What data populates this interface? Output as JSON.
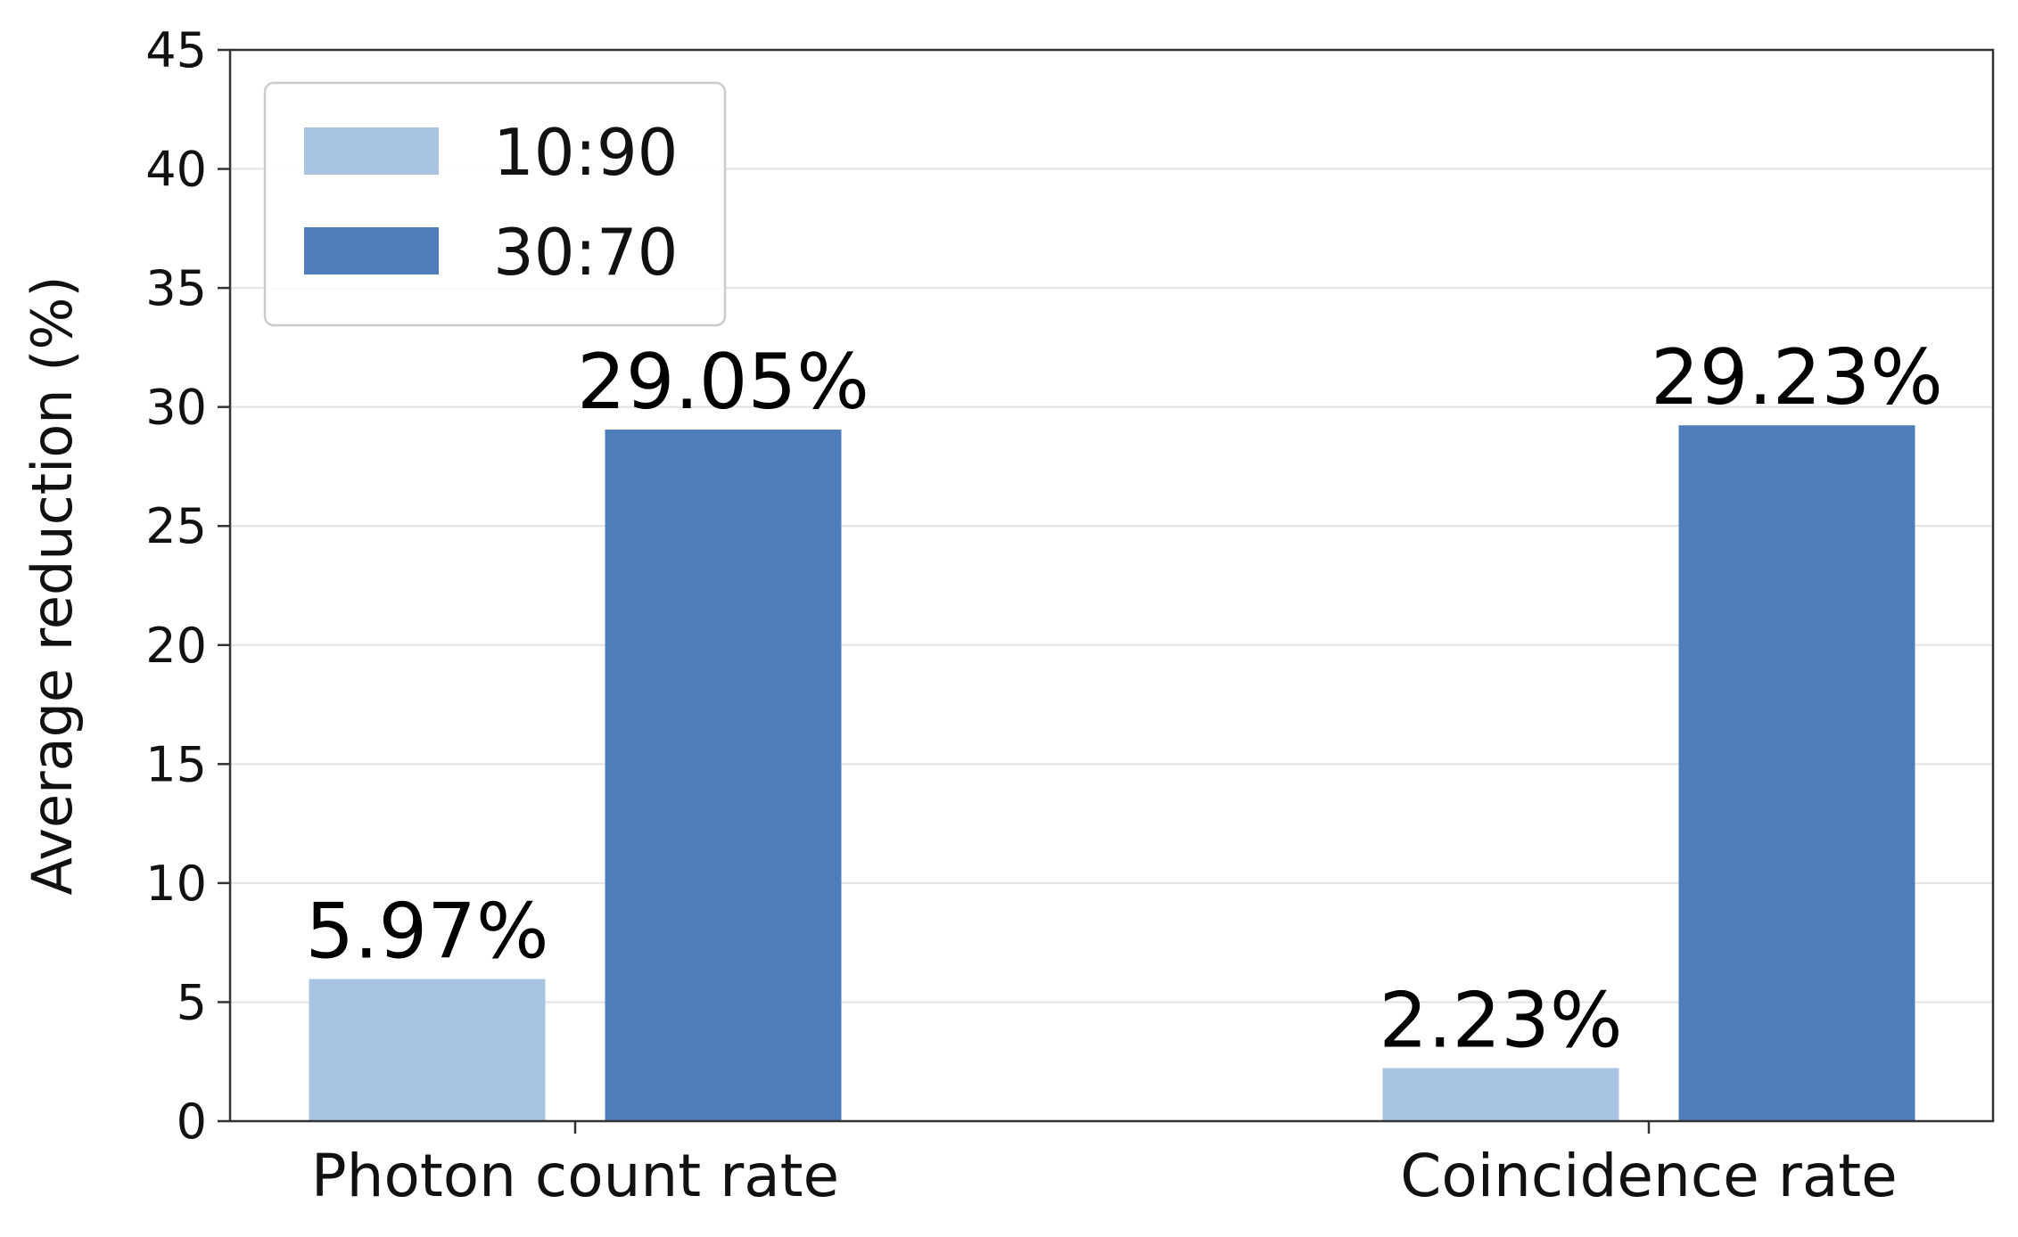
{
  "chart_data": {
    "type": "bar",
    "categories": [
      "Photon count rate",
      "Coincidence rate"
    ],
    "series": [
      {
        "name": "10:90",
        "values": [
          5.97,
          2.23
        ],
        "labels": [
          "5.97%",
          "2.23%"
        ],
        "color": "#a9c4e2"
      },
      {
        "name": "30:70",
        "values": [
          29.05,
          29.23
        ],
        "labels": [
          "29.05%",
          "29.23%"
        ],
        "color": "#4f7cba"
      }
    ],
    "xlabel": "",
    "ylabel": "Average reduction (%)",
    "ylim": [
      0,
      45
    ],
    "yticks": [
      0,
      5,
      10,
      15,
      20,
      25,
      30,
      35,
      40,
      45
    ],
    "grid": "horizontal",
    "legend": "top-left"
  }
}
